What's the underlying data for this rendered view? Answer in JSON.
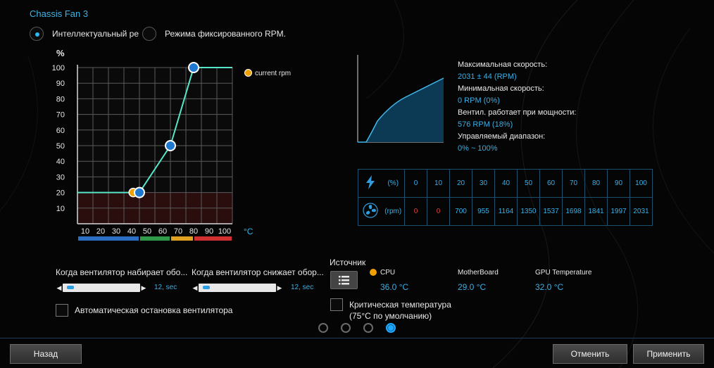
{
  "title": "Chassis Fan 3",
  "modes": {
    "smart_label": "Интеллектуальный ре",
    "fixed_label": "Режима фиксированного RPM."
  },
  "curve_chart": {
    "ylabel": "%",
    "xunit": "°C",
    "legend": "current rpm",
    "y_ticks": [
      "100",
      "90",
      "80",
      "70",
      "60",
      "50",
      "40",
      "30",
      "20",
      "10"
    ],
    "x_ticks": [
      "10",
      "20",
      "30",
      "40",
      "50",
      "60",
      "70",
      "80",
      "90",
      "100"
    ]
  },
  "chart_data": {
    "type": "line",
    "ylabel": "%",
    "xlabel": "°C",
    "xlim": [
      0,
      100
    ],
    "ylim": [
      0,
      100
    ],
    "points": [
      [
        0,
        20
      ],
      [
        40,
        20
      ],
      [
        60,
        50
      ],
      [
        75,
        100
      ],
      [
        100,
        100
      ]
    ],
    "control_points": [
      [
        40,
        20
      ],
      [
        60,
        50
      ],
      [
        75,
        100
      ]
    ],
    "current": {
      "x": 36,
      "y": 20
    },
    "temperature_zones": [
      {
        "from": 0,
        "to": 40,
        "color": "#2c6fc2"
      },
      {
        "from": 40,
        "to": 60,
        "color": "#2f9a4a"
      },
      {
        "from": 60,
        "to": 75,
        "color": "#e0a020"
      },
      {
        "from": 75,
        "to": 100,
        "color": "#d03030"
      }
    ]
  },
  "info": {
    "max_label": "Максимальная скорость:",
    "max_value": "2031 ± 44 (RPM)",
    "min_label": "Минимальная скорость:",
    "min_value": "0 RPM (0%)",
    "start_label": "Вентил. работает при мощности:",
    "start_value": "576 RPM (18%)",
    "range_label": "Управляемый диапазон:",
    "range_value": "0% ~ 100%"
  },
  "table": {
    "percent_unit": "(%)",
    "rpm_unit": "(rpm)",
    "percents": [
      "0",
      "10",
      "20",
      "30",
      "40",
      "50",
      "60",
      "70",
      "80",
      "90",
      "100"
    ],
    "rpms": [
      "0",
      "0",
      "700",
      "955",
      "1164",
      "1350",
      "1537",
      "1698",
      "1841",
      "1997",
      "2031"
    ]
  },
  "sliders": {
    "up_label": "Когда вентилятор набирает обо...",
    "up_value": "12, sec",
    "down_label": "Когда вентилятор снижает обор...",
    "down_value": "12, sec"
  },
  "auto_stop_label": "Автоматическая остановка вентилятора",
  "source": {
    "title": "Источник",
    "cpu_label": "CPU",
    "cpu_value": "36.0 °C",
    "mb_label": "MotherBoard",
    "mb_value": "29.0 °C",
    "gpu_label": "GPU Temperature",
    "gpu_value": "32.0 °C",
    "critical_label_1": "Критическая температура",
    "critical_label_2": "(75°C по умолчанию)"
  },
  "pages": 4,
  "active_page": 4,
  "buttons": {
    "back": "Назад",
    "cancel": "Отменить",
    "apply": "Применить"
  }
}
